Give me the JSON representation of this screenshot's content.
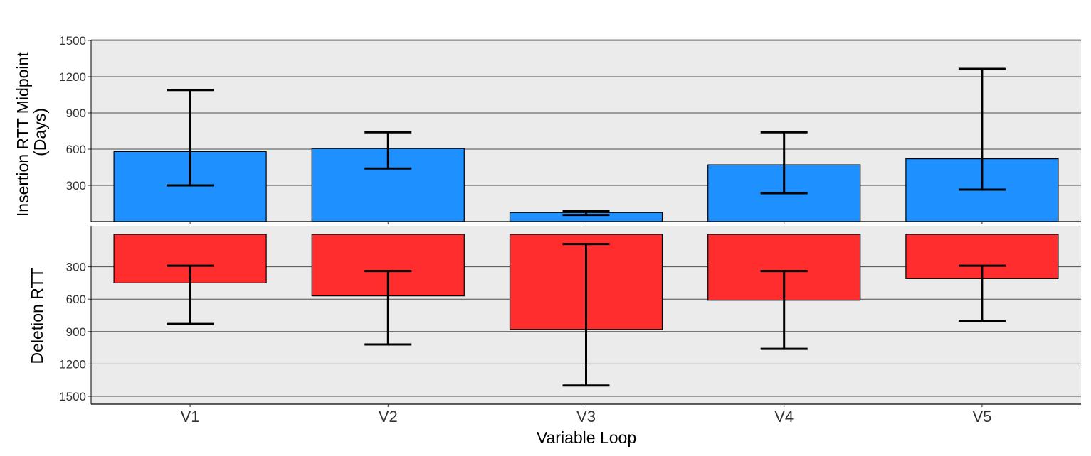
{
  "chart_data": [
    {
      "type": "bar",
      "panel": "insertion",
      "ylabel_lines": [
        "Insertion RTT Midpoint",
        "(Days)"
      ],
      "ylim": [
        0,
        1500
      ],
      "yticks": [
        300,
        600,
        900,
        1200,
        1500
      ],
      "grid": true,
      "categories": [
        "V1",
        "V2",
        "V3",
        "V4",
        "V5"
      ],
      "values": [
        580,
        605,
        75,
        470,
        520
      ],
      "error_low": [
        300,
        440,
        55,
        235,
        265
      ],
      "error_high": [
        1090,
        740,
        85,
        740,
        1265
      ],
      "color": "#1E90FF"
    },
    {
      "type": "bar",
      "panel": "deletion",
      "orientation": "downward",
      "ylabel": "Deletion RTT",
      "ylim": [
        0,
        1500
      ],
      "yticks": [
        300,
        600,
        900,
        1200,
        1500
      ],
      "grid": true,
      "categories": [
        "V1",
        "V2",
        "V3",
        "V4",
        "V5"
      ],
      "values": [
        450,
        570,
        880,
        610,
        410
      ],
      "error_low": [
        290,
        340,
        90,
        340,
        290
      ],
      "error_high": [
        830,
        1020,
        1400,
        1060,
        800
      ],
      "color": "#FF2D2D"
    }
  ],
  "xlabel": "Variable Loop",
  "colors": {
    "panel_bg": "#EBEBEB",
    "grid": "#4D4D4D"
  }
}
